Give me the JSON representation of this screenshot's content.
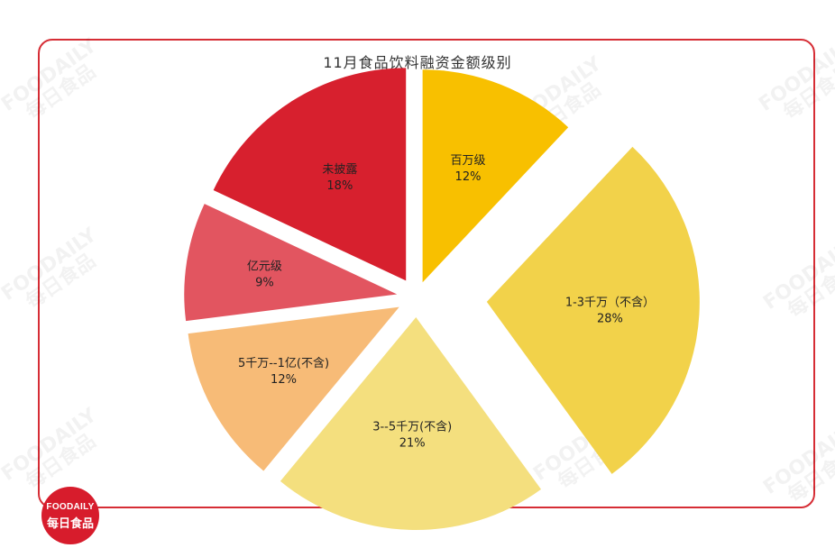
{
  "chart_data": {
    "type": "pie",
    "title": "11月食品饮料融资金额级别",
    "slices": [
      {
        "label": "百万级",
        "value": 12,
        "value_label": "12%",
        "color": "#f8c000"
      },
      {
        "label": "1-3千万（不含）",
        "value": 28,
        "value_label": "28%",
        "color": "#f2d24a"
      },
      {
        "label": "3--5千万(不含)",
        "value": 21,
        "value_label": "21%",
        "color": "#f4df7e"
      },
      {
        "label": "5千万--1亿(不含)",
        "value": 12,
        "value_label": "12%",
        "color": "#f7bb77"
      },
      {
        "label": "亿元级",
        "value": 9,
        "value_label": "9%",
        "color": "#e25560"
      },
      {
        "label": "未披露",
        "value": 18,
        "value_label": "18%",
        "color": "#d7202e"
      }
    ],
    "legend": "none"
  },
  "watermark": {
    "en": "FOODAILY",
    "cn": "每日食品"
  },
  "logo": {
    "en": "FOODAILY",
    "cn": "每日食品",
    "color": "#d71c2c"
  }
}
